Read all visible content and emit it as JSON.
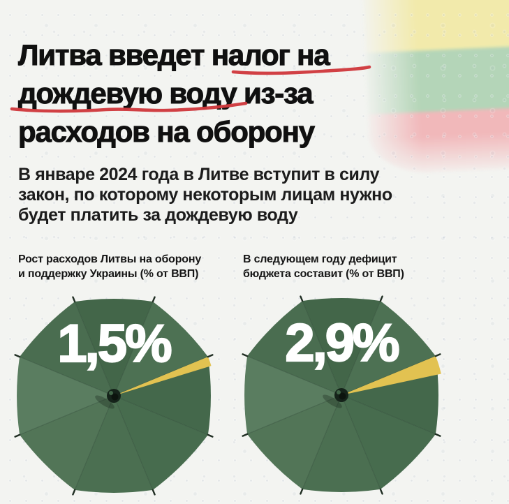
{
  "meta": {
    "language": "ru",
    "kind": "news-infographic"
  },
  "colors": {
    "background": "#f3f4f1",
    "headline_text": "#101010",
    "underline_red": "#cf3a3e",
    "umbrella_green": "#4a6e50",
    "wedge_yellow": "#e2c251",
    "value_text": "#ffffff",
    "flag_yellow": "#f2eaa4",
    "flag_green": "#aed2b2",
    "flag_red": "#f1b2b5"
  },
  "flag": {
    "name": "lithuania-flag",
    "bands": [
      "yellow",
      "green",
      "red"
    ]
  },
  "headline": {
    "lines": [
      "Литва введет налог на",
      "дождевую воду из-за",
      "расходов на оборону"
    ],
    "underlined_phrases": [
      "налог на",
      "дождевую воду"
    ]
  },
  "subtitle": {
    "text": "В январе 2024 года в Литве вступит в силу закон, по которому некоторым лицам нужно будет платить за дождевую воду",
    "lines": [
      "В январе 2024 года в Литве вступит в силу",
      "закон, по которому некоторым лицам нужно",
      "будет платить за дождевую воду"
    ]
  },
  "chart_data": [
    {
      "type": "pie",
      "style": "umbrella-top-view",
      "title": "Рост расходов Литвы на оборону и поддержку Украины (% от ВВП)",
      "title_lines": [
        "Рост расходов Литвы на оборону",
        "и поддержку Украины (% от ВВП)"
      ],
      "unit": "% от ВВП",
      "value": 1.5,
      "value_label": "1,5%",
      "total": 100,
      "slice_color": "#e2c251",
      "umbrella_color": "#4a6e50",
      "legend_position": "none"
    },
    {
      "type": "pie",
      "style": "umbrella-top-view",
      "title": "В следующем году дефицит бюджета составит (% от ВВП)",
      "title_lines": [
        "В следующем году дефицит",
        "бюджета составит (% от ВВП)"
      ],
      "unit": "% от ВВП",
      "value": 2.9,
      "value_label": "2,9%",
      "total": 100,
      "slice_color": "#e2c251",
      "umbrella_color": "#4a6e50",
      "legend_position": "none"
    }
  ]
}
